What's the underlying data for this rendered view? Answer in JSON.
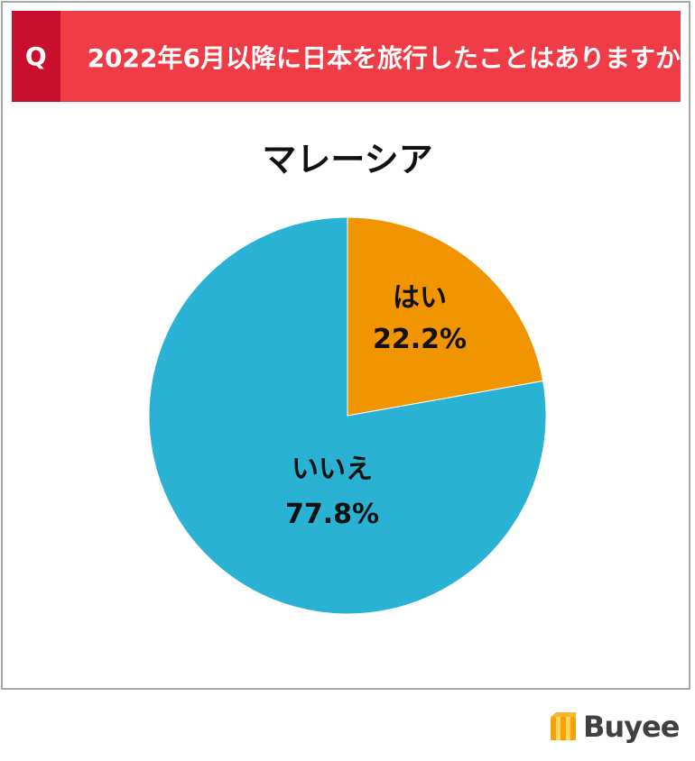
{
  "question": {
    "badge": "Q",
    "text": "2022年6月以降に日本を旅行したことはありますか",
    "badge_color": "#c8102e",
    "bar_color": "#f03c46"
  },
  "chart_data": {
    "type": "pie",
    "title": "マレーシア",
    "slices": [
      {
        "label": "はい",
        "value": 22.2,
        "display": "22.2%",
        "color": "#f09400"
      },
      {
        "label": "いいえ",
        "value": 77.8,
        "display": "77.8%",
        "color": "#29b2d3"
      }
    ],
    "start_angle": "12 o'clock",
    "direction": "clockwise"
  },
  "brand": {
    "name": "Buyee",
    "logo_icon": "box-logo-icon",
    "logo_color": "#f5a300"
  }
}
